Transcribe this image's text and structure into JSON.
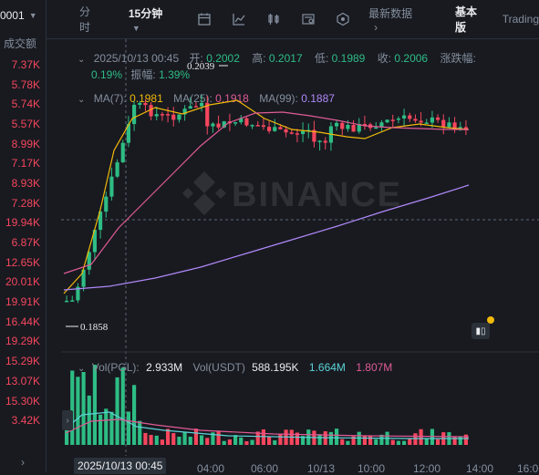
{
  "left": {
    "symbol_tail": "0001",
    "column_label": "成交额",
    "volumes": [
      "7.37K",
      "5.78K",
      "5.74K",
      "5.57K",
      "8.99K",
      "7.17K",
      "8.93K",
      "7.28K",
      "19.94K",
      "6.87K",
      "12.65K",
      "20.01K",
      "19.91K",
      "16.44K",
      "19.29K",
      "15.29K",
      "13.07K",
      "15.30K",
      "3.42K"
    ]
  },
  "toolbar": {
    "time_label": "分时",
    "interval_label": "15分钟",
    "latest_label": "最新数据",
    "basic_label": "基本版",
    "trading_label": "Trading"
  },
  "ohlc": {
    "time": "2025/10/13 00:45",
    "open_label": "开:",
    "open": "0.2002",
    "high_label": "高:",
    "high": "0.2017",
    "low_label": "低:",
    "low": "0.1989",
    "close_label": "收:",
    "close": "0.2006",
    "change_label": "涨跌幅:",
    "change": "0.19%",
    "amplitude_label": "振幅:",
    "amplitude": "1.39%"
  },
  "ma": {
    "ma7_label": "MA(7):",
    "ma7": "0.1981",
    "ma25_label": "MA(25):",
    "ma25": "0.1918",
    "ma99_label": "MA(99):",
    "ma99": "0.1887"
  },
  "annotations": {
    "high_marker": "0.2039",
    "low_marker": "0.1858"
  },
  "volume_indicator": {
    "vol_label": "Vol(PGL):",
    "vol": "2.933M",
    "vol_usdt_label": "Vol(USDT)",
    "vol_usdt": "588.195K",
    "ma_a": "1.664M",
    "ma_b": "1.807M"
  },
  "xaxis": {
    "active": "2025/10/13 00:45",
    "ticks": [
      "04:00",
      "06:00",
      "10/13",
      "10:00",
      "12:00",
      "14:00",
      "16:00"
    ]
  },
  "watermark": "BINANCE",
  "colors": {
    "up": "#2ebd85",
    "down": "#f6465d",
    "ma7": "#f0b90b",
    "ma25": "#e05b95",
    "ma99": "#b088f9"
  }
}
